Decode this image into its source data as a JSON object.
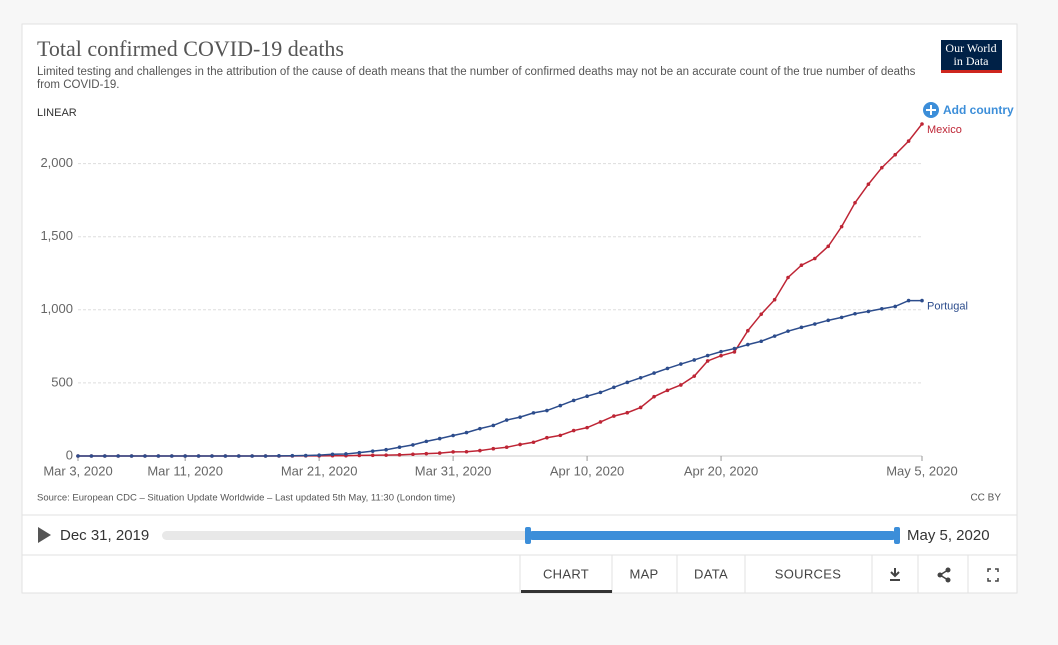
{
  "chart_data": {
    "type": "line",
    "title": "Total confirmed COVID-19 deaths",
    "subtitle": "Limited testing and challenges in the attribution of the cause of death means that the number of confirmed deaths may not be an accurate count of the true number of deaths from COVID-19.",
    "scale_label": "LINEAR",
    "source": "Source: European CDC – Situation Update Worldwide – Last updated 5th May, 11:30 (London time)",
    "license": "CC BY",
    "x": [
      "2020-03-03",
      "2020-03-04",
      "2020-03-05",
      "2020-03-06",
      "2020-03-07",
      "2020-03-08",
      "2020-03-09",
      "2020-03-10",
      "2020-03-11",
      "2020-03-12",
      "2020-03-13",
      "2020-03-14",
      "2020-03-15",
      "2020-03-16",
      "2020-03-17",
      "2020-03-18",
      "2020-03-19",
      "2020-03-20",
      "2020-03-21",
      "2020-03-22",
      "2020-03-23",
      "2020-03-24",
      "2020-03-25",
      "2020-03-26",
      "2020-03-27",
      "2020-03-28",
      "2020-03-29",
      "2020-03-30",
      "2020-03-31",
      "2020-04-01",
      "2020-04-02",
      "2020-04-03",
      "2020-04-04",
      "2020-04-05",
      "2020-04-06",
      "2020-04-07",
      "2020-04-08",
      "2020-04-09",
      "2020-04-10",
      "2020-04-11",
      "2020-04-12",
      "2020-04-13",
      "2020-04-14",
      "2020-04-15",
      "2020-04-16",
      "2020-04-17",
      "2020-04-18",
      "2020-04-19",
      "2020-04-20",
      "2020-04-21",
      "2020-04-22",
      "2020-04-23",
      "2020-04-24",
      "2020-04-25",
      "2020-04-26",
      "2020-04-27",
      "2020-04-28",
      "2020-04-29",
      "2020-04-30",
      "2020-05-01",
      "2020-05-02",
      "2020-05-03",
      "2020-05-04",
      "2020-05-05"
    ],
    "series": [
      {
        "name": "Mexico",
        "color": "#be2535",
        "values": [
          0,
          0,
          0,
          0,
          0,
          0,
          0,
          0,
          0,
          0,
          0,
          0,
          0,
          0,
          0,
          0,
          0,
          1,
          1,
          2,
          2,
          4,
          5,
          6,
          8,
          12,
          16,
          20,
          28,
          29,
          37,
          50,
          60,
          79,
          94,
          125,
          141,
          174,
          194,
          233,
          273,
          296,
          332,
          406,
          449,
          486,
          546,
          650,
          686,
          712,
          857,
          970,
          1069,
          1221,
          1305,
          1351,
          1434,
          1569,
          1732,
          1859,
          1972,
          2061,
          2154,
          2271
        ]
      },
      {
        "name": "Portugal",
        "color": "#2c4c8c",
        "values": [
          0,
          0,
          0,
          0,
          0,
          0,
          0,
          0,
          0,
          0,
          0,
          0,
          0,
          0,
          0,
          1,
          2,
          3,
          6,
          12,
          14,
          23,
          33,
          43,
          60,
          76,
          100,
          119,
          140,
          160,
          187,
          209,
          246,
          266,
          295,
          311,
          345,
          380,
          409,
          435,
          470,
          504,
          535,
          567,
          599,
          629,
          657,
          687,
          714,
          735,
          762,
          785,
          820,
          854,
          880,
          903,
          928,
          948,
          973,
          989,
          1007,
          1023,
          1063,
          1063
        ]
      }
    ],
    "xlim": [
      "2020-03-03",
      "2020-05-05"
    ],
    "xticks": [
      {
        "value": "2020-03-03",
        "label": "Mar 3, 2020"
      },
      {
        "value": "2020-03-11",
        "label": "Mar 11, 2020"
      },
      {
        "value": "2020-03-21",
        "label": "Mar 21, 2020"
      },
      {
        "value": "2020-03-31",
        "label": "Mar 31, 2020"
      },
      {
        "value": "2020-04-10",
        "label": "Apr 10, 2020"
      },
      {
        "value": "2020-04-20",
        "label": "Apr 20, 2020"
      },
      {
        "value": "2020-05-05",
        "label": "May 5, 2020"
      }
    ],
    "ylim": [
      0,
      2271
    ],
    "yticks": [
      0,
      500,
      {
        "value": 1000,
        "label": "1,000"
      },
      {
        "value": 1500,
        "label": "1,500"
      },
      {
        "value": 2000,
        "label": "2,000"
      }
    ],
    "grid": true
  },
  "ui": {
    "logo": [
      "Our World",
      "in Data"
    ],
    "add_country": "Add country",
    "timeline": {
      "start": "Dec 31, 2019",
      "end": "May 5, 2020"
    },
    "tabs": [
      "CHART",
      "MAP",
      "DATA",
      "SOURCES"
    ]
  }
}
